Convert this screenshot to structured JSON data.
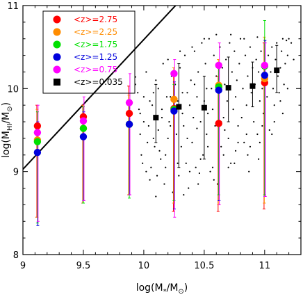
{
  "chart_data": {
    "type": "scatter",
    "xlabel": "log(M*/M⊙)",
    "ylabel": "log(MHI/M⊙)",
    "xlim": [
      9.0,
      11.3
    ],
    "ylim": [
      8.0,
      11.0
    ],
    "xticks": [
      "9",
      "9.5",
      "10",
      "10.5",
      "11"
    ],
    "xtick_values": [
      9.0,
      9.5,
      10.0,
      10.5,
      11.0
    ],
    "yticks": [
      "8",
      "9",
      "10",
      "11"
    ],
    "ytick_values": [
      8.0,
      9.0,
      10.0,
      11.0
    ],
    "grid": false,
    "legend_position": "top-left",
    "fit_line": {
      "intercept": -5.03,
      "slope": 1.562
    },
    "series": [
      {
        "name": "<z>=2.75",
        "color": "#ff0000",
        "marker": "circle",
        "x": [
          9.12,
          9.5,
          9.88,
          10.25,
          10.62,
          11.0
        ],
        "y": [
          9.55,
          9.66,
          9.7,
          9.76,
          9.58,
          10.07
        ],
        "err_low": [
          8.45,
          8.62,
          8.72,
          8.52,
          8.52,
          8.55
        ],
        "err_high": [
          9.8,
          9.8,
          10.03,
          10.18,
          10.15,
          10.55
        ]
      },
      {
        "name": "<z>=2.25",
        "color": "#ff8c00",
        "marker": "circle",
        "x": [
          9.12,
          9.5,
          9.88,
          10.25,
          10.62,
          11.0
        ],
        "y": [
          9.38,
          9.52,
          9.57,
          9.87,
          10.04,
          10.12
        ],
        "err_low": [
          8.45,
          8.62,
          8.72,
          8.62,
          8.6,
          8.62
        ],
        "err_high": [
          9.75,
          9.8,
          9.92,
          10.25,
          10.35,
          10.62
        ]
      },
      {
        "name": "<z>=1.75",
        "color": "#00e000",
        "marker": "circle",
        "x": [
          9.12,
          9.5,
          9.88,
          10.25,
          10.62,
          11.0
        ],
        "y": [
          9.36,
          9.52,
          9.57,
          9.75,
          10.02,
          10.27
        ],
        "err_low": [
          8.38,
          8.62,
          8.68,
          8.65,
          8.72,
          8.72
        ],
        "err_high": [
          9.72,
          9.78,
          9.82,
          10.05,
          10.25,
          10.82
        ]
      },
      {
        "name": "<z>=1.25",
        "color": "#0000dd",
        "marker": "circle",
        "x": [
          9.12,
          9.5,
          9.88,
          10.25,
          10.62,
          11.0
        ],
        "y": [
          9.23,
          9.42,
          9.57,
          9.73,
          9.98,
          10.16
        ],
        "err_low": [
          8.35,
          8.65,
          8.72,
          8.55,
          8.65,
          8.7
        ],
        "err_high": [
          9.6,
          9.72,
          9.82,
          10.08,
          10.25,
          10.58
        ]
      },
      {
        "name": "<z>=0.75",
        "color": "#ff00ff",
        "marker": "circle",
        "x": [
          9.12,
          9.5,
          9.88,
          10.25,
          10.62,
          11.0
        ],
        "y": [
          9.47,
          9.61,
          9.83,
          10.18,
          10.28,
          10.28
        ],
        "err_low": [
          8.4,
          8.65,
          8.72,
          8.45,
          8.6,
          8.7
        ],
        "err_high": [
          9.8,
          9.9,
          10.18,
          10.35,
          10.55,
          10.55
        ]
      },
      {
        "name": "<z>=0.035",
        "color": "#000000",
        "marker": "square",
        "x": [
          10.1,
          10.29,
          10.5,
          10.7,
          10.9,
          11.1
        ],
        "y": [
          9.65,
          9.78,
          9.77,
          10.01,
          10.03,
          10.22
        ],
        "err_low": [
          9.35,
          9.05,
          9.15,
          9.6,
          9.78,
          9.95
        ],
        "err_high": [
          10.05,
          10.3,
          10.15,
          10.38,
          10.32,
          10.52
        ]
      }
    ],
    "galaxies": [
      [
        9.88,
        8.95
      ],
      [
        9.93,
        10.14
      ],
      [
        9.93,
        10.05
      ],
      [
        9.95,
        9.95
      ],
      [
        9.96,
        9.75
      ],
      [
        9.97,
        9.45
      ],
      [
        9.98,
        9.2
      ],
      [
        9.99,
        9.1
      ],
      [
        10.0,
        9.9
      ],
      [
        10.0,
        9.6
      ],
      [
        10.02,
        10.2
      ],
      [
        10.03,
        9.35
      ],
      [
        10.04,
        9.55
      ],
      [
        10.05,
        8.9
      ],
      [
        10.06,
        9.05
      ],
      [
        10.07,
        9.8
      ],
      [
        10.08,
        9.95
      ],
      [
        10.09,
        9.3
      ],
      [
        10.1,
        8.7
      ],
      [
        10.1,
        10.1
      ],
      [
        10.12,
        9.5
      ],
      [
        10.13,
        9.25
      ],
      [
        10.14,
        9.15
      ],
      [
        10.15,
        9.75
      ],
      [
        10.16,
        10.3
      ],
      [
        10.17,
        8.85
      ],
      [
        10.18,
        9.05
      ],
      [
        10.19,
        9.9
      ],
      [
        10.2,
        9.4
      ],
      [
        10.21,
        9.6
      ],
      [
        10.22,
        9.55
      ],
      [
        10.23,
        10.15
      ],
      [
        10.24,
        8.75
      ],
      [
        10.25,
        9.2
      ],
      [
        10.26,
        10.05
      ],
      [
        10.27,
        9.45
      ],
      [
        10.28,
        9.85
      ],
      [
        10.29,
        8.95
      ],
      [
        10.3,
        10.25
      ],
      [
        10.31,
        9.3
      ],
      [
        10.32,
        9.7
      ],
      [
        10.33,
        9.55
      ],
      [
        10.34,
        10.4
      ],
      [
        10.35,
        9.1
      ],
      [
        10.36,
        9.95
      ],
      [
        10.37,
        8.8
      ],
      [
        10.38,
        9.8
      ],
      [
        10.39,
        10.1
      ],
      [
        10.4,
        9.35
      ],
      [
        10.41,
        9.65
      ],
      [
        10.42,
        10.45
      ],
      [
        10.43,
        9.05
      ],
      [
        10.44,
        9.9
      ],
      [
        10.45,
        10.2
      ],
      [
        10.46,
        8.98
      ],
      [
        10.47,
        9.6
      ],
      [
        10.48,
        10.55
      ],
      [
        10.49,
        9.2
      ],
      [
        10.5,
        9.85
      ],
      [
        10.51,
        10.3
      ],
      [
        10.52,
        9.45
      ],
      [
        10.53,
        9.7
      ],
      [
        10.54,
        10.6
      ],
      [
        10.55,
        9.0
      ],
      [
        10.56,
        10.0
      ],
      [
        10.57,
        9.75
      ],
      [
        10.58,
        10.4
      ],
      [
        10.59,
        9.55
      ],
      [
        10.6,
        10.15
      ],
      [
        10.61,
        8.85
      ],
      [
        10.62,
        9.95
      ],
      [
        10.63,
        10.5
      ],
      [
        10.64,
        9.3
      ],
      [
        10.65,
        10.25
      ],
      [
        10.66,
        9.65
      ],
      [
        10.67,
        10.05
      ],
      [
        10.68,
        10.35
      ],
      [
        10.69,
        9.85
      ],
      [
        10.7,
        9.4
      ],
      [
        10.71,
        10.55
      ],
      [
        10.72,
        9.1
      ],
      [
        10.73,
        10.2
      ],
      [
        10.74,
        9.75
      ],
      [
        10.75,
        10.45
      ],
      [
        10.76,
        9.9
      ],
      [
        10.77,
        10.1
      ],
      [
        10.78,
        9.55
      ],
      [
        10.79,
        10.3
      ],
      [
        10.8,
        10.6
      ],
      [
        10.81,
        9.65
      ],
      [
        10.82,
        10.0
      ],
      [
        10.83,
        9.35
      ],
      [
        10.84,
        10.4
      ],
      [
        10.85,
        9.8
      ],
      [
        10.86,
        10.15
      ],
      [
        10.87,
        9.0
      ],
      [
        10.88,
        10.5
      ],
      [
        10.89,
        9.95
      ],
      [
        10.9,
        10.25
      ],
      [
        10.91,
        9.6
      ],
      [
        10.92,
        10.05
      ],
      [
        10.93,
        10.35
      ],
      [
        10.94,
        9.45
      ],
      [
        10.95,
        10.2
      ],
      [
        10.96,
        9.85
      ],
      [
        10.97,
        10.45
      ],
      [
        10.98,
        10.0
      ],
      [
        10.99,
        9.7
      ],
      [
        11.0,
        10.3
      ],
      [
        11.01,
        10.1
      ],
      [
        11.02,
        9.9
      ],
      [
        11.03,
        10.4
      ],
      [
        11.04,
        9.5
      ],
      [
        11.05,
        10.2
      ],
      [
        11.06,
        10.5
      ],
      [
        11.07,
        10.0
      ],
      [
        11.08,
        9.8
      ],
      [
        11.09,
        10.35
      ],
      [
        11.1,
        10.55
      ],
      [
        11.11,
        10.15
      ],
      [
        11.12,
        9.95
      ],
      [
        11.13,
        10.25
      ],
      [
        11.14,
        10.45
      ],
      [
        11.15,
        10.6
      ],
      [
        11.16,
        10.05
      ],
      [
        11.17,
        10.3
      ],
      [
        11.18,
        10.58
      ],
      [
        11.19,
        10.4
      ],
      [
        11.2,
        10.6
      ],
      [
        11.22,
        10.55
      ],
      [
        10.02,
        9.0
      ],
      [
        10.11,
        8.95
      ],
      [
        10.33,
        8.72
      ],
      [
        10.45,
        8.85
      ],
      [
        10.58,
        8.9
      ],
      [
        10.7,
        9.05
      ],
      [
        10.15,
        9.65
      ],
      [
        10.25,
        9.5
      ],
      [
        10.36,
        9.4
      ],
      [
        10.44,
        9.52
      ],
      [
        10.53,
        9.3
      ],
      [
        10.64,
        9.6
      ],
      [
        10.76,
        9.25
      ],
      [
        10.85,
        9.45
      ],
      [
        10.95,
        9.15
      ],
      [
        10.2,
        10.35
      ],
      [
        10.3,
        10.45
      ],
      [
        10.4,
        10.5
      ],
      [
        10.5,
        10.6
      ],
      [
        10.6,
        10.65
      ],
      [
        10.72,
        10.65
      ],
      [
        10.83,
        10.6
      ],
      [
        10.94,
        10.62
      ],
      [
        9.97,
        9.7
      ],
      [
        10.05,
        9.85
      ],
      [
        10.12,
        10.0
      ],
      [
        10.22,
        9.9
      ],
      [
        10.32,
        9.95
      ],
      [
        10.42,
        10.05
      ],
      [
        10.52,
        10.0
      ],
      [
        10.67,
        9.5
      ],
      [
        10.78,
        9.35
      ],
      [
        10.88,
        9.3
      ],
      [
        10.98,
        9.55
      ],
      [
        11.08,
        9.6
      ],
      [
        11.15,
        9.7
      ],
      [
        10.08,
        9.4
      ],
      [
        10.18,
        9.2
      ],
      [
        10.28,
        9.1
      ],
      [
        10.38,
        9.0
      ],
      [
        10.47,
        9.15
      ],
      [
        10.57,
        9.05
      ],
      [
        10.66,
        9.2
      ],
      [
        10.75,
        9.1
      ],
      [
        10.86,
        9.2
      ],
      [
        10.96,
        9.35
      ],
      [
        11.06,
        9.45
      ],
      [
        11.13,
        9.85
      ],
      [
        11.19,
        10.0
      ],
      [
        11.24,
        10.35
      ]
    ],
    "legend": [
      {
        "label": "<z>=2.75",
        "color": "#ff0000",
        "marker": "circle"
      },
      {
        "label": "<z>=2.25",
        "color": "#ff8c00",
        "marker": "circle"
      },
      {
        "label": "<z>=1.75",
        "color": "#00e000",
        "marker": "circle"
      },
      {
        "label": "<z>=1.25",
        "color": "#0000dd",
        "marker": "circle"
      },
      {
        "label": "<z>=0.75",
        "color": "#ff00ff",
        "marker": "circle"
      },
      {
        "label": "<z>=0.035",
        "color": "#000000",
        "marker": "square"
      }
    ]
  }
}
